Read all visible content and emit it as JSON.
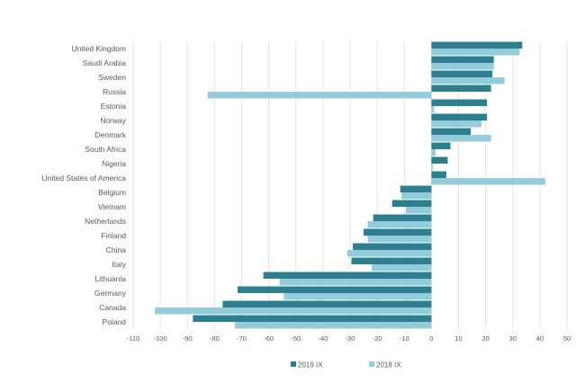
{
  "chart_data": {
    "type": "bar",
    "orientation": "horizontal",
    "categories": [
      "United Kingdom",
      "Saudi Arabia",
      "Sweden",
      "Russia",
      "Estonia",
      "Norway",
      "Denmark",
      "South Africa",
      "Nigeria",
      "United States of America",
      "Belgium",
      "Vietnam",
      "Netherlands",
      "Finland",
      "China",
      "Italy",
      "Lithuania",
      "Germany",
      "Canada",
      "Poland"
    ],
    "series": [
      {
        "name": "2019 IX",
        "color": "#2e7f8e",
        "values": [
          33.5,
          23,
          22.5,
          22,
          20.5,
          20.5,
          14.5,
          7,
          6,
          5.5,
          -11.5,
          -14.5,
          -21.5,
          -25,
          -29,
          -29.5,
          -62,
          -71.5,
          -77,
          -88
        ]
      },
      {
        "name": "2018 IX",
        "color": "#94cdd9",
        "values": [
          32.5,
          23,
          27,
          -82.5,
          1,
          18.5,
          22,
          1.5,
          0.5,
          42,
          -11,
          -9.5,
          -23.5,
          -23.5,
          -31,
          -22,
          -56,
          -54.5,
          -102,
          -72.5
        ]
      }
    ],
    "xlim": [
      -110,
      50
    ],
    "xticks": [
      -110,
      -100,
      -90,
      -80,
      -70,
      -60,
      -50,
      -40,
      -30,
      -20,
      -10,
      0,
      10,
      20,
      30,
      40,
      50
    ],
    "grid": "vertical",
    "legend": "bottom-center"
  }
}
